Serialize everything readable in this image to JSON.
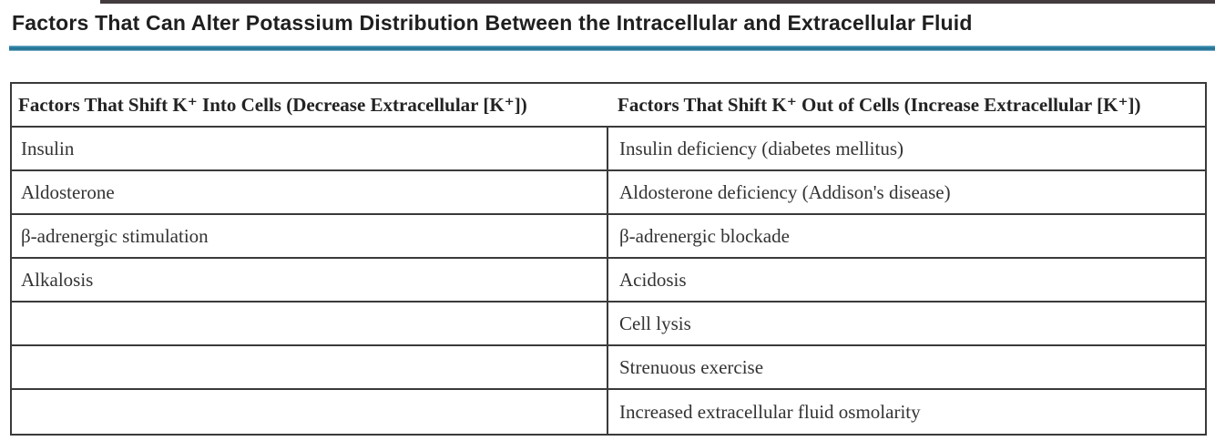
{
  "page": {
    "title": "Factors That Can Alter Potassium Distribution Between the Intracellular and Extracellular Fluid",
    "accent_color": "#2b7fa3",
    "border_color": "#3a3a3a"
  },
  "table": {
    "headers": [
      "Factors That Shift K⁺ Into Cells (Decrease Extracellular [K⁺])",
      "Factors That Shift K⁺ Out of Cells (Increase Extracellular [K⁺])"
    ],
    "rows": [
      {
        "left": "Insulin",
        "right": "Insulin deficiency (diabetes mellitus)"
      },
      {
        "left": "Aldosterone",
        "right": "Aldosterone deficiency (Addison's disease)"
      },
      {
        "left": "β-adrenergic stimulation",
        "right": "β-adrenergic blockade"
      },
      {
        "left": "Alkalosis",
        "right": "Acidosis"
      },
      {
        "left": "",
        "right": "Cell lysis"
      },
      {
        "left": "",
        "right": "Strenuous exercise"
      },
      {
        "left": "",
        "right": "Increased extracellular fluid osmolarity"
      }
    ]
  }
}
